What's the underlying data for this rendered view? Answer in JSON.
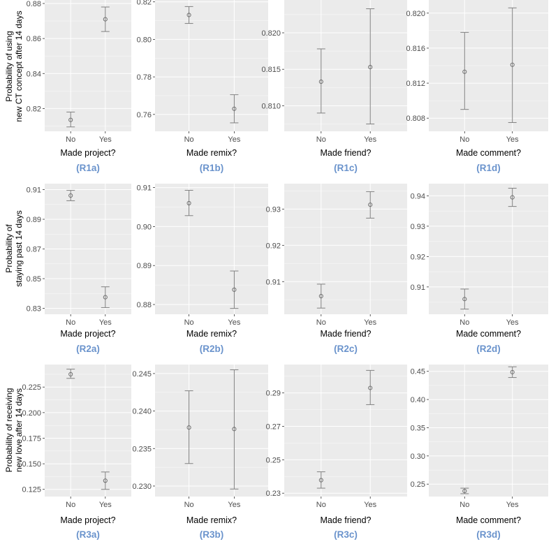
{
  "style": {
    "panel_bg": "#ebebeb",
    "grid_major": "#ffffff",
    "errorbar_color": "#808080",
    "point_color": "#666666",
    "tag_color": "#6a93cc"
  },
  "categories": [
    "No",
    "Yes"
  ],
  "rows": [
    {
      "ylabel_lines": [
        "Probability of using",
        "new CT concept after 14 days"
      ]
    },
    {
      "ylabel_lines": [
        "Probability of",
        "staying past 14 days"
      ]
    },
    {
      "ylabel_lines": [
        "Probability of receiving",
        "new love after 14 days"
      ]
    }
  ],
  "chart_data": [
    {
      "id": "R1a",
      "type": "scatter",
      "title": "(R1a)",
      "xlabel": "Made project?",
      "ylabel": "Probability of using new CT concept after 14 days",
      "categories": [
        "No",
        "Yes"
      ],
      "ylim": [
        0.807,
        0.882
      ],
      "yticks": [
        0.82,
        0.84,
        0.86,
        0.88
      ],
      "tick_decimals": 2,
      "values": [
        0.8135,
        0.871
      ],
      "ci_low": [
        0.8095,
        0.864
      ],
      "ci_high": [
        0.818,
        0.878
      ]
    },
    {
      "id": "R1b",
      "type": "scatter",
      "title": "(R1b)",
      "xlabel": "Made remix?",
      "ylabel": "",
      "categories": [
        "No",
        "Yes"
      ],
      "ylim": [
        0.751,
        0.821
      ],
      "yticks": [
        0.76,
        0.78,
        0.8,
        0.82
      ],
      "tick_decimals": 2,
      "values": [
        0.813,
        0.763
      ],
      "ci_low": [
        0.8085,
        0.7555
      ],
      "ci_high": [
        0.8175,
        0.7705
      ]
    },
    {
      "id": "R1c",
      "type": "scatter",
      "title": "(R1c)",
      "xlabel": "Made friend?",
      "ylabel": "",
      "categories": [
        "No",
        "Yes"
      ],
      "ylim": [
        0.8065,
        0.8245
      ],
      "yticks": [
        0.81,
        0.815,
        0.82
      ],
      "tick_decimals": 3,
      "values": [
        0.8133,
        0.8153
      ],
      "ci_low": [
        0.809,
        0.8075
      ],
      "ci_high": [
        0.8178,
        0.8233
      ]
    },
    {
      "id": "R1d",
      "type": "scatter",
      "title": "(R1d)",
      "xlabel": "Made comment?",
      "ylabel": "",
      "categories": [
        "No",
        "Yes"
      ],
      "ylim": [
        0.8065,
        0.8215
      ],
      "yticks": [
        0.808,
        0.812,
        0.816,
        0.82
      ],
      "tick_decimals": 3,
      "values": [
        0.8133,
        0.8141
      ],
      "ci_low": [
        0.809,
        0.8075
      ],
      "ci_high": [
        0.8178,
        0.8206
      ]
    },
    {
      "id": "R2a",
      "type": "scatter",
      "title": "(R2a)",
      "xlabel": "Made project?",
      "ylabel": "Probability of staying past 14 days",
      "categories": [
        "No",
        "Yes"
      ],
      "ylim": [
        0.826,
        0.914
      ],
      "yticks": [
        0.83,
        0.85,
        0.87,
        0.89,
        0.91
      ],
      "tick_decimals": 2,
      "values": [
        0.906,
        0.8375
      ],
      "ci_low": [
        0.9025,
        0.8305
      ],
      "ci_high": [
        0.9095,
        0.8445
      ]
    },
    {
      "id": "R2b",
      "type": "scatter",
      "title": "(R2b)",
      "xlabel": "Made remix?",
      "ylabel": "",
      "categories": [
        "No",
        "Yes"
      ],
      "ylim": [
        0.8775,
        0.911
      ],
      "yticks": [
        0.88,
        0.89,
        0.9,
        0.91
      ],
      "tick_decimals": 2,
      "values": [
        0.906,
        0.8838
      ],
      "ci_low": [
        0.9028,
        0.879
      ],
      "ci_high": [
        0.9093,
        0.8886
      ]
    },
    {
      "id": "R2c",
      "type": "scatter",
      "title": "(R2c)",
      "xlabel": "Made friend?",
      "ylabel": "",
      "categories": [
        "No",
        "Yes"
      ],
      "ylim": [
        0.901,
        0.937
      ],
      "yticks": [
        0.91,
        0.92,
        0.93
      ],
      "tick_decimals": 2,
      "values": [
        0.906,
        0.9312
      ],
      "ci_low": [
        0.9027,
        0.9275
      ],
      "ci_high": [
        0.9093,
        0.9348
      ]
    },
    {
      "id": "R2d",
      "type": "scatter",
      "title": "(R2d)",
      "xlabel": "Made comment?",
      "ylabel": "",
      "categories": [
        "No",
        "Yes"
      ],
      "ylim": [
        0.901,
        0.944
      ],
      "yticks": [
        0.91,
        0.92,
        0.93,
        0.94
      ],
      "tick_decimals": 2,
      "values": [
        0.906,
        0.9395
      ],
      "ci_low": [
        0.9027,
        0.9365
      ],
      "ci_high": [
        0.9093,
        0.9425
      ]
    },
    {
      "id": "R3a",
      "type": "scatter",
      "title": "(R3a)",
      "xlabel": "Made project?",
      "ylabel": "Probability of receiving new love after 14 days",
      "categories": [
        "No",
        "Yes"
      ],
      "ylim": [
        0.118,
        0.247
      ],
      "yticks": [
        0.125,
        0.15,
        0.175,
        0.2,
        0.225
      ],
      "tick_decimals": 3,
      "values": [
        0.2375,
        0.1335
      ],
      "ci_low": [
        0.2335,
        0.125
      ],
      "ci_high": [
        0.2425,
        0.142
      ]
    },
    {
      "id": "R3b",
      "type": "scatter",
      "title": "(R3b)",
      "xlabel": "Made remix?",
      "ylabel": "",
      "categories": [
        "No",
        "Yes"
      ],
      "ylim": [
        0.2286,
        0.2462
      ],
      "yticks": [
        0.23,
        0.235,
        0.24,
        0.245
      ],
      "tick_decimals": 3,
      "values": [
        0.2378,
        0.2376
      ],
      "ci_low": [
        0.233,
        0.2296
      ],
      "ci_high": [
        0.2427,
        0.2455
      ]
    },
    {
      "id": "R3c",
      "type": "scatter",
      "title": "(R3c)",
      "xlabel": "Made friend?",
      "ylabel": "",
      "categories": [
        "No",
        "Yes"
      ],
      "ylim": [
        0.228,
        0.307
      ],
      "yticks": [
        0.23,
        0.25,
        0.27,
        0.29
      ],
      "tick_decimals": 2,
      "values": [
        0.2378,
        0.293
      ],
      "ci_low": [
        0.233,
        0.283
      ],
      "ci_high": [
        0.2428,
        0.3035
      ]
    },
    {
      "id": "R3d",
      "type": "scatter",
      "title": "(R3d)",
      "xlabel": "Made comment?",
      "ylabel": "",
      "categories": [
        "No",
        "Yes"
      ],
      "ylim": [
        0.228,
        0.462
      ],
      "yticks": [
        0.25,
        0.3,
        0.35,
        0.4,
        0.45
      ],
      "tick_decimals": 2,
      "values": [
        0.2378,
        0.4485
      ],
      "ci_low": [
        0.233,
        0.439
      ],
      "ci_high": [
        0.2428,
        0.458
      ]
    }
  ]
}
